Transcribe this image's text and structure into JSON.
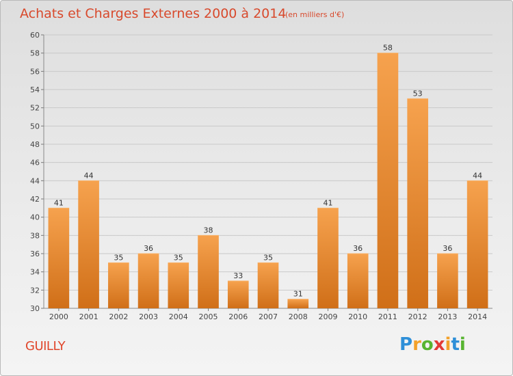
{
  "title": "Achats et Charges Externes 2000 à 2014",
  "subtitle": "(en milliers d'€)",
  "commune": "GUILLY",
  "logo": {
    "letters": [
      "P",
      "r",
      "o",
      "x",
      "i",
      "t",
      "i"
    ],
    "colors": [
      "#2e8fd8",
      "#f3a12a",
      "#58b431",
      "#e23a36",
      "#f3a12a",
      "#2e8fd8",
      "#58b431"
    ]
  },
  "colors": {
    "bar_light": "#f6a24e",
    "bar_dark": "#d06f18",
    "grid": "#c9c9c9",
    "title": "#d8492c"
  },
  "chart_data": {
    "type": "bar",
    "title": "Achats et Charges Externes 2000 à 2014",
    "categories": [
      "2000",
      "2001",
      "2002",
      "2003",
      "2004",
      "2005",
      "2006",
      "2007",
      "2008",
      "2009",
      "2010",
      "2011",
      "2012",
      "2013",
      "2014"
    ],
    "values": [
      41,
      44,
      35,
      36,
      35,
      38,
      33,
      35,
      31,
      41,
      36,
      58,
      53,
      36,
      44
    ],
    "ylim": [
      30,
      60
    ],
    "yticks": [
      30,
      32,
      34,
      36,
      38,
      40,
      42,
      44,
      46,
      48,
      50,
      52,
      54,
      56,
      58,
      60
    ],
    "grid": true,
    "data_labels": true
  }
}
